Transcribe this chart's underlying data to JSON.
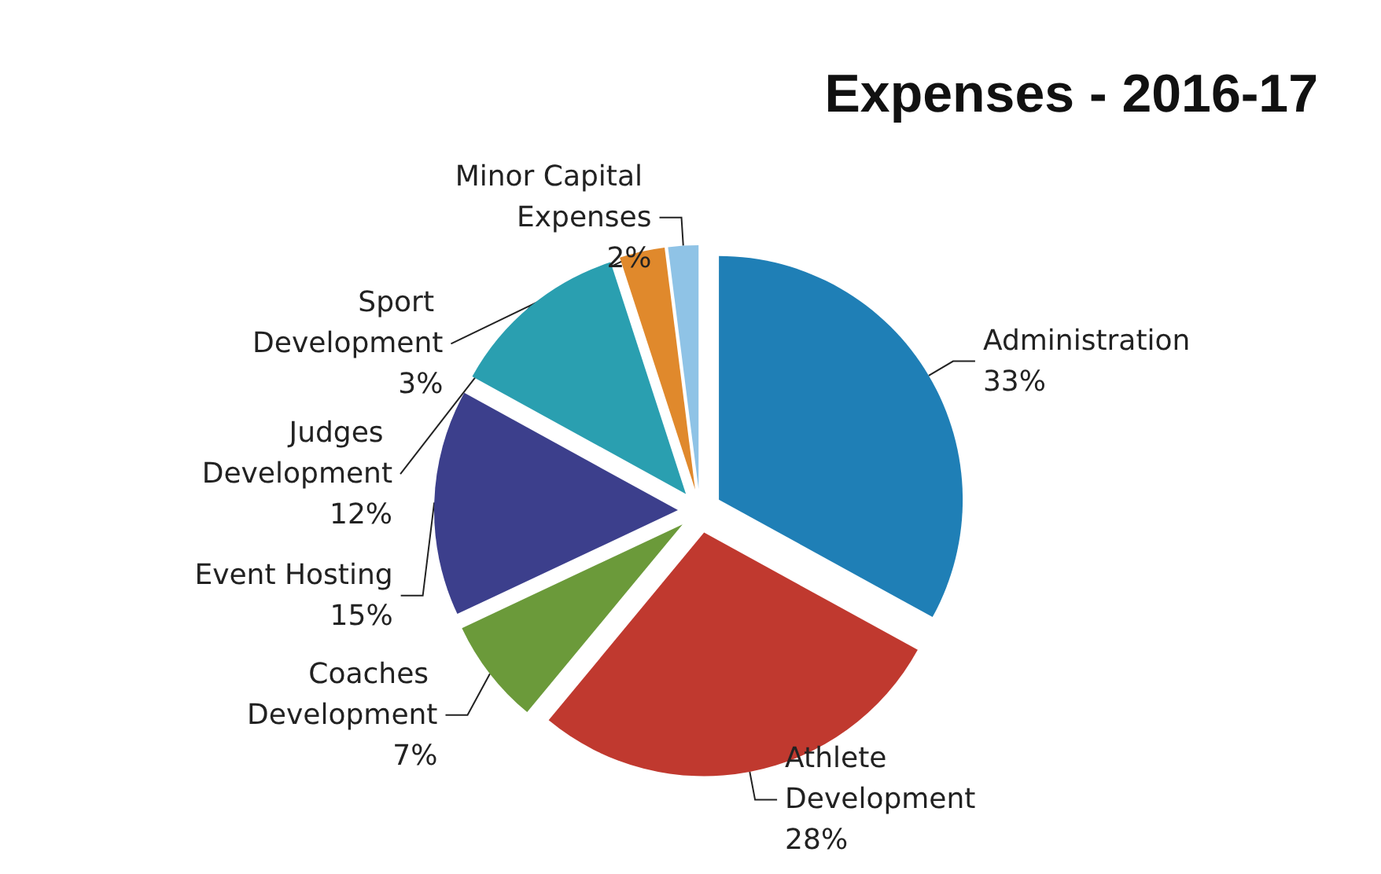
{
  "chart_data": {
    "type": "pie",
    "title": "Expenses - 2016-17",
    "categories": [
      "Administration",
      "Athlete Development",
      "Coaches Development",
      "Event Hosting",
      "Judges Development",
      "Sport Development",
      "Minor Capital Expenses"
    ],
    "values": [
      33,
      28,
      7,
      15,
      12,
      3,
      2
    ],
    "value_labels": [
      "33%",
      "28%",
      "7%",
      "15%",
      "12%",
      "3%",
      "2%"
    ],
    "colors": [
      "#1f7fb6",
      "#c0392f",
      "#6b9a3a",
      "#3c3f8c",
      "#2a9fb0",
      "#e0892c",
      "#8fc3e6"
    ],
    "legend": false
  }
}
